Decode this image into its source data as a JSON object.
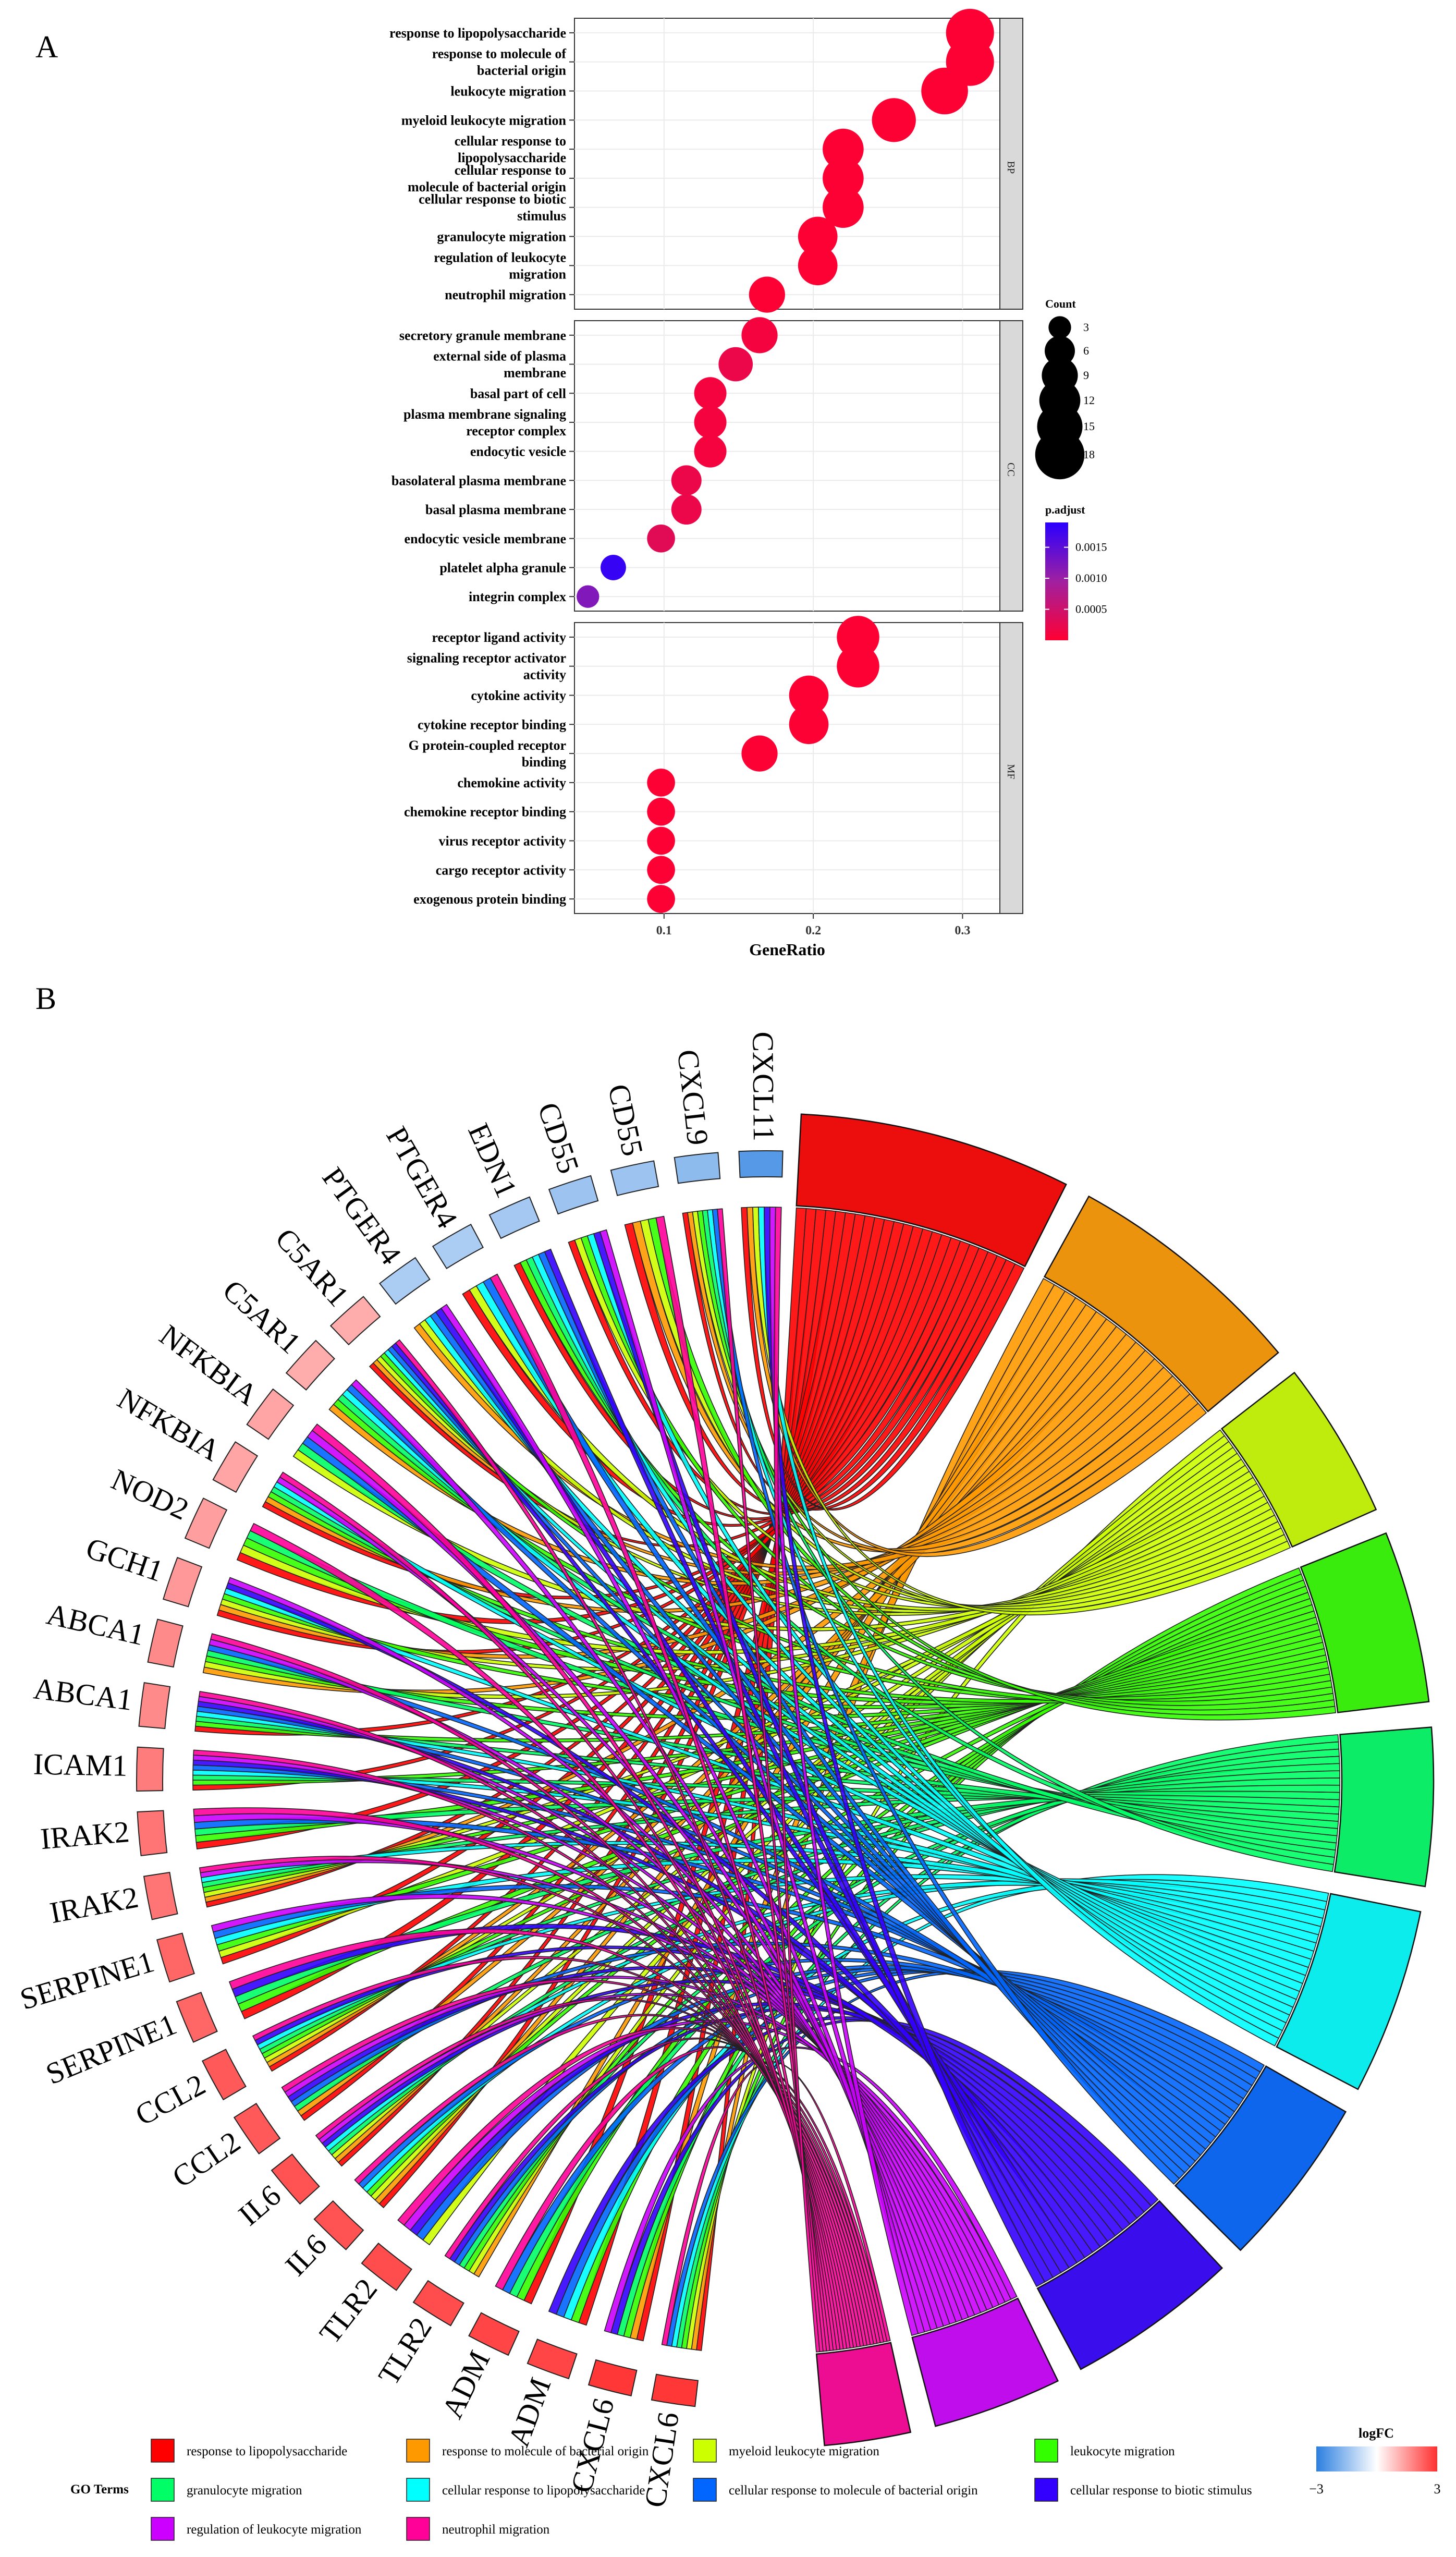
{
  "panel_labels": {
    "a": "A",
    "b": "B"
  },
  "chart_data": [
    {
      "type": "scatter",
      "title": "",
      "xlabel": "GeneRatio",
      "ylabel": "",
      "xlim": [
        0.04,
        0.325
      ],
      "xticks": [
        0.1,
        0.2,
        0.3
      ],
      "xtick_labels": [
        "0.1",
        "0.2",
        "0.3"
      ],
      "grid": true,
      "facets": [
        {
          "key": "BP",
          "label": "BP",
          "terms": [
            {
              "label": [
                "response to lipopolysaccharide"
              ],
              "x": 0.305,
              "count": 17,
              "padj": 2e-05
            },
            {
              "label": [
                "response to molecule of",
                "bacterial origin"
              ],
              "x": 0.305,
              "count": 17,
              "padj": 2e-05
            },
            {
              "label": [
                "leukocyte migration"
              ],
              "x": 0.288,
              "count": 16,
              "padj": 2e-05
            },
            {
              "label": [
                "myeloid leukocyte migration"
              ],
              "x": 0.254,
              "count": 14,
              "padj": 2e-05
            },
            {
              "label": [
                "cellular response to",
                "lipopolysaccharide"
              ],
              "x": 0.22,
              "count": 12,
              "padj": 2e-05
            },
            {
              "label": [
                "cellular response to",
                "molecule of bacterial origin"
              ],
              "x": 0.22,
              "count": 12,
              "padj": 2e-05
            },
            {
              "label": [
                "cellular response to biotic",
                "stimulus"
              ],
              "x": 0.22,
              "count": 12,
              "padj": 2e-05
            },
            {
              "label": [
                "granulocyte migration"
              ],
              "x": 0.203,
              "count": 11,
              "padj": 2e-05
            },
            {
              "label": [
                "regulation of leukocyte",
                "migration"
              ],
              "x": 0.203,
              "count": 11,
              "padj": 2e-05
            },
            {
              "label": [
                "neutrophil migration"
              ],
              "x": 0.169,
              "count": 9,
              "padj": 2e-05
            }
          ]
        },
        {
          "key": "CC",
          "label": "CC",
          "terms": [
            {
              "label": [
                "secretory granule membrane"
              ],
              "x": 0.164,
              "count": 9,
              "padj": 0.0001
            },
            {
              "label": [
                "external side of plasma",
                "membrane"
              ],
              "x": 0.148,
              "count": 8,
              "padj": 0.0002
            },
            {
              "label": [
                "basal part of cell"
              ],
              "x": 0.131,
              "count": 7,
              "padj": 0.0001
            },
            {
              "label": [
                "plasma membrane signaling",
                "receptor complex"
              ],
              "x": 0.131,
              "count": 7,
              "padj": 0.0001
            },
            {
              "label": [
                "endocytic vesicle"
              ],
              "x": 0.131,
              "count": 7,
              "padj": 0.0001
            },
            {
              "label": [
                "basolateral plasma membrane"
              ],
              "x": 0.115,
              "count": 6,
              "padj": 0.0002
            },
            {
              "label": [
                "basal plasma membrane"
              ],
              "x": 0.115,
              "count": 6,
              "padj": 0.0002
            },
            {
              "label": [
                "endocytic vesicle membrane"
              ],
              "x": 0.098,
              "count": 5,
              "padj": 0.0003
            },
            {
              "label": [
                "platelet alpha granule"
              ],
              "x": 0.066,
              "count": 4,
              "padj": 0.0018
            },
            {
              "label": [
                "integrin complex"
              ],
              "x": 0.049,
              "count": 3,
              "padj": 0.0012
            }
          ]
        },
        {
          "key": "MF",
          "label": "MF",
          "terms": [
            {
              "label": [
                "receptor ligand activity"
              ],
              "x": 0.23,
              "count": 13,
              "padj": 2e-05
            },
            {
              "label": [
                "signaling receptor activator",
                "activity"
              ],
              "x": 0.23,
              "count": 13,
              "padj": 2e-05
            },
            {
              "label": [
                "cytokine activity"
              ],
              "x": 0.197,
              "count": 11,
              "padj": 2e-05
            },
            {
              "label": [
                "cytokine receptor binding"
              ],
              "x": 0.197,
              "count": 11,
              "padj": 2e-05
            },
            {
              "label": [
                "G protein-coupled receptor",
                "binding"
              ],
              "x": 0.164,
              "count": 9,
              "padj": 2e-05
            },
            {
              "label": [
                "chemokine activity"
              ],
              "x": 0.098,
              "count": 5,
              "padj": 2e-05
            },
            {
              "label": [
                "chemokine receptor binding"
              ],
              "x": 0.098,
              "count": 5,
              "padj": 2e-05
            },
            {
              "label": [
                "virus receptor activity"
              ],
              "x": 0.098,
              "count": 5,
              "padj": 2e-05
            },
            {
              "label": [
                "cargo receptor activity"
              ],
              "x": 0.098,
              "count": 5,
              "padj": 2e-05
            },
            {
              "label": [
                "exogenous protein binding"
              ],
              "x": 0.098,
              "count": 5,
              "padj": 2e-05
            }
          ]
        }
      ],
      "legend_count": {
        "title": "Count",
        "values": [
          3,
          6,
          9,
          12,
          15,
          18
        ]
      },
      "legend_padj": {
        "title": "p.adjust",
        "range": [
          0,
          0.0019
        ],
        "ticks": [
          0.0005,
          0.001,
          0.0015
        ],
        "tick_labels": [
          "0.0005",
          "0.0010",
          "0.0015"
        ],
        "color_low": "#ff0033",
        "color_mid": "#a020a0",
        "color_high": "#2a00ff"
      }
    },
    {
      "type": "chord",
      "genes": [
        {
          "name": "CXCL6",
          "logFC": 2.9
        },
        {
          "name": "CXCL6",
          "logFC": 2.9
        },
        {
          "name": "ADM",
          "logFC": 2.7
        },
        {
          "name": "ADM",
          "logFC": 2.7
        },
        {
          "name": "TLR2",
          "logFC": 2.6
        },
        {
          "name": "TLR2",
          "logFC": 2.6
        },
        {
          "name": "IL6",
          "logFC": 2.5
        },
        {
          "name": "IL6",
          "logFC": 2.5
        },
        {
          "name": "CCL2",
          "logFC": 2.4
        },
        {
          "name": "CCL2",
          "logFC": 2.4
        },
        {
          "name": "SERPINE1",
          "logFC": 2.2
        },
        {
          "name": "SERPINE1",
          "logFC": 2.2
        },
        {
          "name": "IRAK2",
          "logFC": 2.0
        },
        {
          "name": "IRAK2",
          "logFC": 2.0
        },
        {
          "name": "ICAM1",
          "logFC": 1.9
        },
        {
          "name": "ABCA1",
          "logFC": 1.7
        },
        {
          "name": "ABCA1",
          "logFC": 1.7
        },
        {
          "name": "GCH1",
          "logFC": 1.5
        },
        {
          "name": "NOD2",
          "logFC": 1.4
        },
        {
          "name": "NFKBIA",
          "logFC": 1.3
        },
        {
          "name": "NFKBIA",
          "logFC": 1.3
        },
        {
          "name": "C5AR1",
          "logFC": 1.2
        },
        {
          "name": "C5AR1",
          "logFC": 1.2
        },
        {
          "name": "PTGER4",
          "logFC": -1.2
        },
        {
          "name": "PTGER4",
          "logFC": -1.2
        },
        {
          "name": "EDN1",
          "logFC": -1.3
        },
        {
          "name": "CD55",
          "logFC": -1.4
        },
        {
          "name": "CD55",
          "logFC": -1.4
        },
        {
          "name": "CXCL9",
          "logFC": -1.6
        },
        {
          "name": "CXCL11",
          "logFC": -2.4
        }
      ],
      "terms": [
        {
          "name": "response to lipopolysaccharide",
          "color": "#ff0000"
        },
        {
          "name": "response to molecule of bacterial origin",
          "color": "#ff9900"
        },
        {
          "name": "myeloid leukocyte migration",
          "color": "#ccff00"
        },
        {
          "name": "leukocyte migration",
          "color": "#33ff00"
        },
        {
          "name": "granulocyte migration",
          "color": "#00ff66"
        },
        {
          "name": "cellular response to lipopolysaccharide",
          "color": "#00ffff"
        },
        {
          "name": "cellular response to molecule of bacterial origin",
          "color": "#0066ff"
        },
        {
          "name": "cellular response to biotic stimulus",
          "color": "#3300ff"
        },
        {
          "name": "regulation of leukocyte migration",
          "color": "#cc00ff"
        },
        {
          "name": "neutrophil migration",
          "color": "#ff0099"
        }
      ],
      "term_arc_weights": [
        19,
        17,
        11,
        12,
        11,
        13,
        12,
        12,
        9,
        6
      ],
      "legend_title": "GO Terms",
      "logfc_legend": {
        "title": "logFC",
        "min_label": "−3",
        "max_label": "3",
        "low_color": "#2c7fe0",
        "mid_color": "#ffffff",
        "high_color": "#ff3030"
      }
    }
  ]
}
